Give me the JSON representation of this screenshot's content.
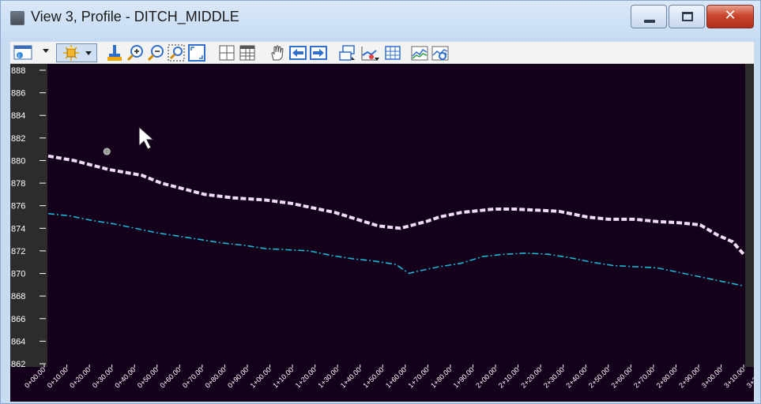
{
  "window": {
    "title": "View 3, Profile - DITCH_MIDDLE",
    "close_glyph": "✕",
    "controls": [
      "minimize",
      "maximize",
      "close"
    ]
  },
  "toolbar": {
    "icons": [
      "view-attributes-icon",
      "display-style-icon",
      "update-view-icon",
      "zoom-in-icon",
      "zoom-out-icon",
      "window-area-icon",
      "fit-view-icon",
      "view-grid-icon",
      "view-table-icon",
      "pan-icon",
      "previous-view-icon",
      "next-view-icon",
      "copy-view-icon",
      "profile-settings-icon",
      "profile-grid-icon",
      "vertical-exaggeration-icon",
      "refresh-profile-icon"
    ]
  },
  "colors": {
    "plot_bg": "#14001a",
    "side_strip": "#2c2c2c",
    "upper_line": "#f0dcf0",
    "lower_line": "#1fb6d6",
    "axis_text": "#ffffff",
    "point": "#9a9a9a"
  },
  "chart_data": {
    "type": "line",
    "title": "",
    "xlabel": "",
    "ylabel": "",
    "xlim": [
      0,
      320
    ],
    "ylim": [
      862,
      888
    ],
    "y_ticks": [
      "888",
      "886",
      "884",
      "882",
      "880",
      "878",
      "876",
      "874",
      "872",
      "870",
      "868",
      "866",
      "864",
      "862"
    ],
    "x_ticks": [
      "0+00.00",
      "0+10.00",
      "0+20.00",
      "0+30.00",
      "0+40.00",
      "0+50.00",
      "0+60.00",
      "0+70.00",
      "0+80.00",
      "0+90.00",
      "1+00.00",
      "1+10.00",
      "1+20.00",
      "1+30.00",
      "1+40.00",
      "1+50.00",
      "1+60.00",
      "1+70.00",
      "1+80.00",
      "1+90.00",
      "2+00.00",
      "2+10.00",
      "2+20.00",
      "2+30.00",
      "2+40.00",
      "2+50.00",
      "2+60.00",
      "2+70.00",
      "2+80.00",
      "2+90.00",
      "3+00.00",
      "3+10.00",
      "3+20.00"
    ],
    "series": [
      {
        "style": "dashed-thick",
        "x": [
          0,
          12,
          28,
          34,
          43,
          52,
          62,
          72,
          85,
          100,
          112,
          122,
          132,
          142,
          152,
          162,
          168,
          174,
          180,
          190,
          205,
          215,
          225,
          235,
          248,
          258,
          270,
          280,
          290,
          300,
          308,
          315,
          320
        ],
        "y": [
          880.4,
          880.0,
          879.2,
          879.0,
          878.7,
          878.0,
          877.5,
          877.0,
          876.7,
          876.5,
          876.2,
          875.8,
          875.4,
          874.8,
          874.2,
          874.0,
          874.3,
          874.6,
          875.0,
          875.4,
          875.7,
          875.7,
          875.6,
          875.5,
          875.0,
          874.8,
          874.8,
          874.6,
          874.5,
          874.3,
          873.4,
          872.8,
          871.7
        ]
      },
      {
        "style": "dash-dot",
        "x": [
          0,
          10,
          20,
          30,
          40,
          50,
          60,
          70,
          80,
          90,
          100,
          110,
          120,
          130,
          140,
          150,
          160,
          166,
          170,
          175,
          180,
          190,
          200,
          210,
          220,
          230,
          240,
          250,
          260,
          270,
          280,
          290,
          300,
          310,
          320
        ],
        "y": [
          875.3,
          875.1,
          874.7,
          874.4,
          874.0,
          873.6,
          873.3,
          873.0,
          872.7,
          872.5,
          872.2,
          872.1,
          872.0,
          871.6,
          871.3,
          871.1,
          870.8,
          870.0,
          870.2,
          870.4,
          870.6,
          870.9,
          871.5,
          871.7,
          871.8,
          871.7,
          871.4,
          871.0,
          870.7,
          870.6,
          870.5,
          870.1,
          869.7,
          869.3,
          868.9
        ]
      }
    ],
    "points": [
      {
        "x": 27,
        "y": 880.8
      }
    ],
    "grid": false,
    "legend": "none"
  }
}
